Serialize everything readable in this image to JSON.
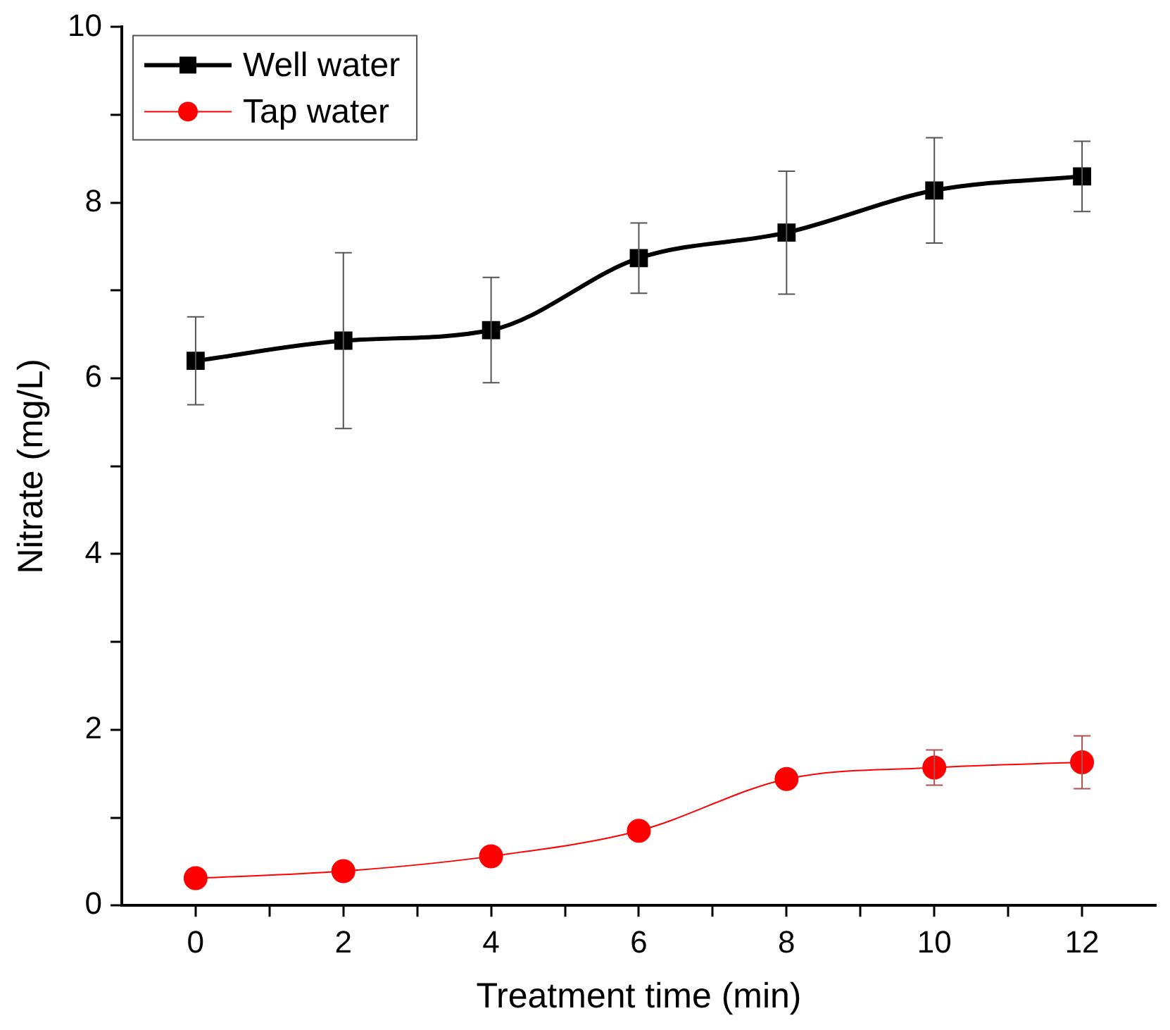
{
  "chart_data": {
    "type": "line",
    "xlabel": "Treatment time (min)",
    "ylabel": "Nitrate (mg/L)",
    "x": [
      0,
      2,
      4,
      6,
      8,
      10,
      12
    ],
    "series": [
      {
        "name": "Well water",
        "color": "#000000",
        "marker": "square",
        "values": [
          6.2,
          6.43,
          6.55,
          7.37,
          7.66,
          8.14,
          8.3
        ],
        "errors": [
          0.5,
          1.0,
          0.6,
          0.4,
          0.7,
          0.6,
          0.4
        ]
      },
      {
        "name": "Tap water",
        "color": "#ff0000",
        "marker": "circle",
        "values": [
          0.31,
          0.39,
          0.56,
          0.85,
          1.44,
          1.57,
          1.63
        ],
        "errors": [
          null,
          null,
          null,
          null,
          null,
          0.2,
          0.3
        ]
      }
    ],
    "xlim": [
      -1,
      13
    ],
    "xticks": [
      0,
      {
        "value": 1,
        "label": null
      },
      2,
      {
        "value": 3,
        "label": null
      },
      4,
      {
        "value": 5,
        "label": null
      },
      6,
      {
        "value": 7,
        "label": null
      },
      8,
      {
        "value": 9,
        "label": null
      },
      10,
      {
        "value": 11,
        "label": null
      },
      12
    ],
    "ylim": [
      0,
      10
    ],
    "yticks": [
      0,
      {
        "value": 1,
        "label": null
      },
      2,
      {
        "value": 3,
        "label": null
      },
      4,
      {
        "value": 5,
        "label": null
      },
      6,
      {
        "value": 7,
        "label": null
      },
      8,
      {
        "value": 9,
        "label": null
      },
      10
    ],
    "grid": false,
    "legend": "top left"
  }
}
